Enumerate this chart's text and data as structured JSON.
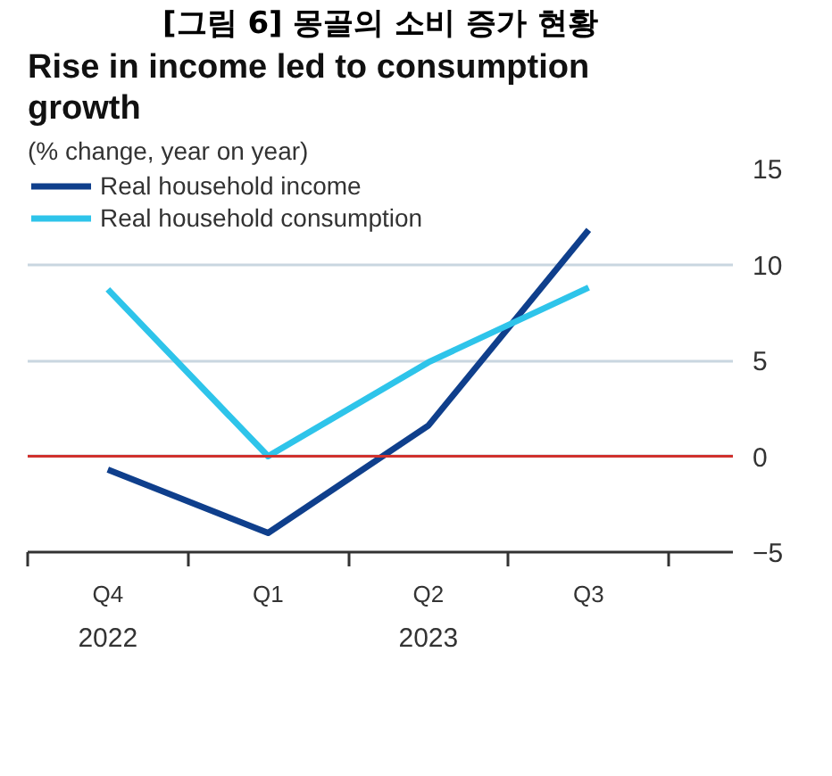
{
  "chart_data": {
    "type": "line",
    "title": "[그림 6] 몽골의 소비 증가 현황",
    "subtitle": "Rise in income led to consumption growth",
    "ylabel": "(% change, year on year)",
    "categories": [
      "Q4",
      "Q1",
      "Q2",
      "Q3"
    ],
    "series": [
      {
        "name": "Real household income",
        "color": "#0f3f8c",
        "values": [
          -0.7,
          -4.0,
          1.6,
          11.8
        ]
      },
      {
        "name": "Real household consumption",
        "color": "#2ec4ea",
        "values": [
          8.7,
          0,
          4.9,
          8.8
        ]
      }
    ],
    "ylim": [
      -5,
      15
    ],
    "yticks": [
      -5,
      0,
      5,
      10,
      15
    ],
    "grid": "y",
    "legend": "top left",
    "marker": "none",
    "line_style": "solid",
    "ref_lines": [
      {
        "axis": "y",
        "value": 0,
        "color": "#d0312d"
      }
    ],
    "annotations": [
      "2022",
      "2023"
    ]
  }
}
